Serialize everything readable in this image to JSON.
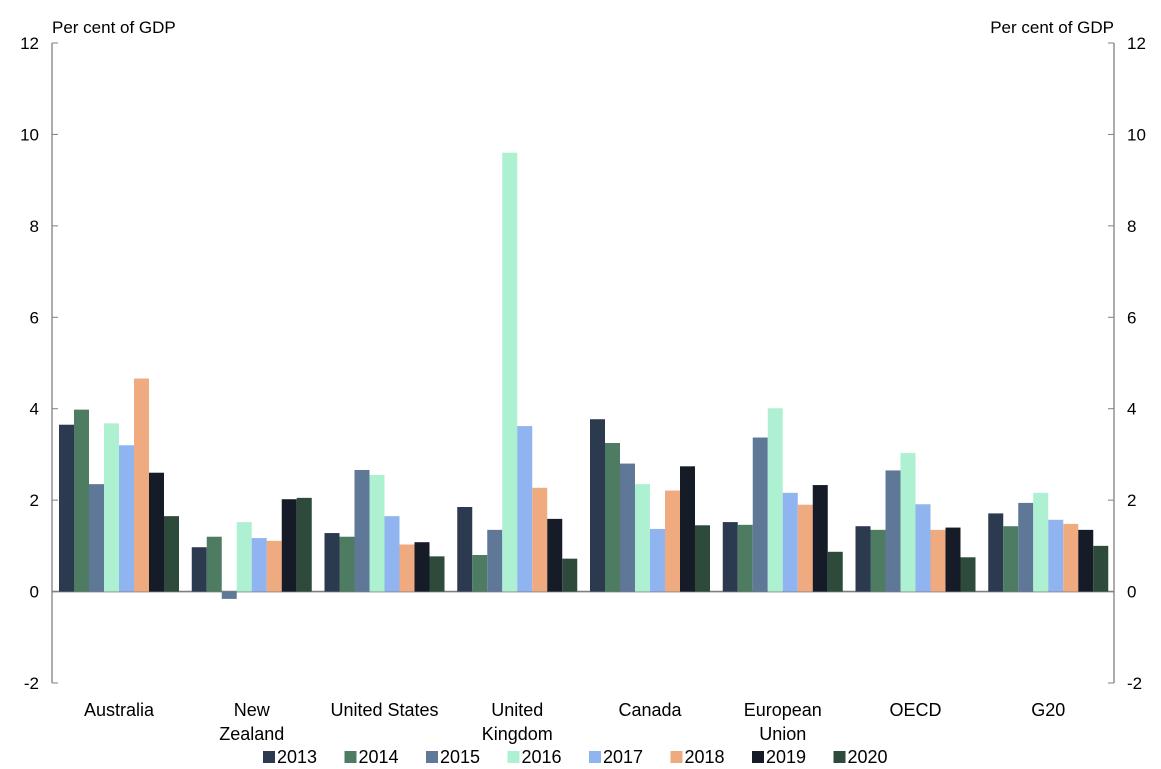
{
  "chart_data": {
    "type": "bar",
    "y_unit_left": "Per cent of GDP",
    "y_unit_right": "Per cent of GDP",
    "ylim": [
      -2,
      12
    ],
    "yticks": [
      -2,
      0,
      2,
      4,
      6,
      8,
      10,
      12
    ],
    "grid": false,
    "legend_position": "bottom",
    "categories": [
      [
        "Australia"
      ],
      [
        "New",
        "Zealand"
      ],
      [
        "United States"
      ],
      [
        "United",
        "Kingdom"
      ],
      [
        "Canada"
      ],
      [
        "European",
        "Union"
      ],
      [
        "OECD"
      ],
      [
        "G20"
      ]
    ],
    "series": [
      {
        "name": "2013",
        "color": "#2b3a4f",
        "values": [
          3.65,
          0.97,
          1.28,
          1.85,
          3.77,
          1.52,
          1.43,
          1.71
        ]
      },
      {
        "name": "2014",
        "color": "#4e7c63",
        "values": [
          3.98,
          1.2,
          1.2,
          0.8,
          3.25,
          1.46,
          1.35,
          1.43
        ]
      },
      {
        "name": "2015",
        "color": "#5f7898",
        "values": [
          2.35,
          -0.16,
          2.66,
          1.35,
          2.8,
          3.37,
          2.65,
          1.94
        ]
      },
      {
        "name": "2016",
        "color": "#aef0d2",
        "values": [
          3.68,
          1.52,
          2.55,
          9.6,
          2.35,
          4.01,
          3.03,
          2.16
        ]
      },
      {
        "name": "2017",
        "color": "#8fb4f0",
        "values": [
          3.2,
          1.17,
          1.65,
          3.62,
          1.37,
          2.16,
          1.91,
          1.57
        ]
      },
      {
        "name": "2018",
        "color": "#f0aa80",
        "values": [
          4.66,
          1.11,
          1.03,
          2.27,
          2.21,
          1.9,
          1.35,
          1.48
        ]
      },
      {
        "name": "2019",
        "color": "#151c28",
        "values": [
          2.6,
          2.02,
          1.08,
          1.59,
          2.74,
          2.33,
          1.4,
          1.35
        ]
      },
      {
        "name": "2020",
        "color": "#2e4a3b",
        "values": [
          1.65,
          2.05,
          0.77,
          0.72,
          1.45,
          0.87,
          0.75,
          1.0
        ]
      }
    ]
  }
}
